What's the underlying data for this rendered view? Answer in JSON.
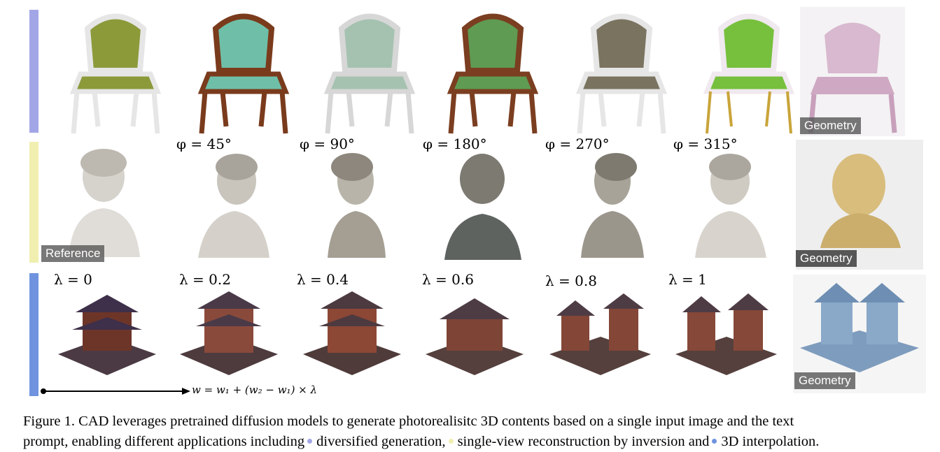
{
  "figure": {
    "row1": {
      "color": "#a3a6e6",
      "items": [
        {
          "name": "chair-olive",
          "seat": "#8c9a3a",
          "frame": "#e8e8e8"
        },
        {
          "name": "chair-teal",
          "seat": "#6fbfa8",
          "frame": "#7a3b1c"
        },
        {
          "name": "chair-sage",
          "seat": "#a5c2b0",
          "frame": "#d7d7d7"
        },
        {
          "name": "chair-green",
          "seat": "#5f9b52",
          "frame": "#7b3e20"
        },
        {
          "name": "chair-taupe",
          "seat": "#7a7360",
          "frame": "#e6e6e6"
        },
        {
          "name": "chair-lime",
          "seat": "#76c03d",
          "frame": "#f0e9ef"
        }
      ],
      "geometry_tag": "Geometry",
      "angles": [
        "φ = 45°",
        "φ = 90°",
        "φ = 180°",
        "φ = 270°",
        "φ = 315°"
      ]
    },
    "row2": {
      "color": "#f0efb0",
      "reference_tag": "Reference",
      "geometry_tag": "Geometry"
    },
    "row3": {
      "color": "#6f93df",
      "lambdas": [
        "λ = 0",
        "λ = 0.2",
        "λ = 0.4",
        "λ = 0.6",
        "λ = 0.8",
        "λ = 1"
      ],
      "geometry_tag": "Geometry",
      "formula": "w = w₁ + (w₂ − w₁) × λ"
    }
  },
  "caption": {
    "line1": "Figure 1. CAD leverages pretrained diffusion models to generate photorealisitc 3D contents based on a single input image and the text",
    "line2_a": "prompt, enabling different applications including",
    "item1": "diversified generation,",
    "item2": "single-view reconstruction by inversion and",
    "item3": "3D interpolation.",
    "dot1": "#a3a6e6",
    "dot2": "#f0efb0",
    "dot3": "#6f93df"
  }
}
